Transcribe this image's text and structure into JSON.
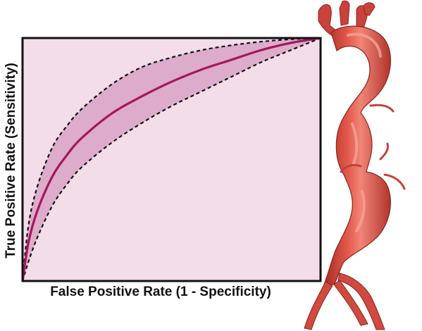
{
  "chart_data": {
    "type": "line",
    "xlabel": "False Positive Rate (1 - Specificity)",
    "ylabel": "True Positive Rate (Sensitivity)",
    "xlim": [
      0,
      1
    ],
    "ylim": [
      0,
      1
    ],
    "grid": false,
    "legend": "none",
    "series": [
      {
        "role": "mean",
        "style": "solid",
        "x": [
          0,
          0.02,
          0.05,
          0.1,
          0.15,
          0.2,
          0.3,
          0.4,
          0.5,
          0.6,
          0.7,
          0.8,
          0.9,
          1.0
        ],
        "y": [
          0,
          0.16,
          0.29,
          0.43,
          0.52,
          0.59,
          0.69,
          0.76,
          0.82,
          0.87,
          0.91,
          0.95,
          0.98,
          1.0
        ]
      },
      {
        "role": "upper-bound",
        "style": "dashed",
        "x": [
          0,
          0.02,
          0.05,
          0.1,
          0.15,
          0.2,
          0.3,
          0.4,
          0.5,
          0.6,
          0.7,
          0.8,
          0.9,
          1.0
        ],
        "y": [
          0,
          0.23,
          0.39,
          0.55,
          0.64,
          0.71,
          0.81,
          0.88,
          0.92,
          0.95,
          0.97,
          0.985,
          0.995,
          1.0
        ]
      },
      {
        "role": "lower-bound",
        "style": "dashed",
        "x": [
          0,
          0.02,
          0.05,
          0.1,
          0.15,
          0.2,
          0.3,
          0.4,
          0.5,
          0.6,
          0.7,
          0.8,
          0.9,
          1.0
        ],
        "y": [
          0,
          0.08,
          0.18,
          0.31,
          0.4,
          0.47,
          0.57,
          0.65,
          0.72,
          0.78,
          0.84,
          0.9,
          0.95,
          1.0
        ]
      }
    ]
  },
  "colors": {
    "plot_background": "#f2dde9",
    "confidence_band": "#d9a3c6",
    "mean_curve": "#a4175c",
    "bound_curve": "#111111",
    "frame": "#111111",
    "vessel_main": "#d54a3f",
    "vessel_dark": "#9e2a24",
    "vessel_highlight": "#f08a7c"
  },
  "illustration": {
    "icon": "aorta-illustration"
  }
}
